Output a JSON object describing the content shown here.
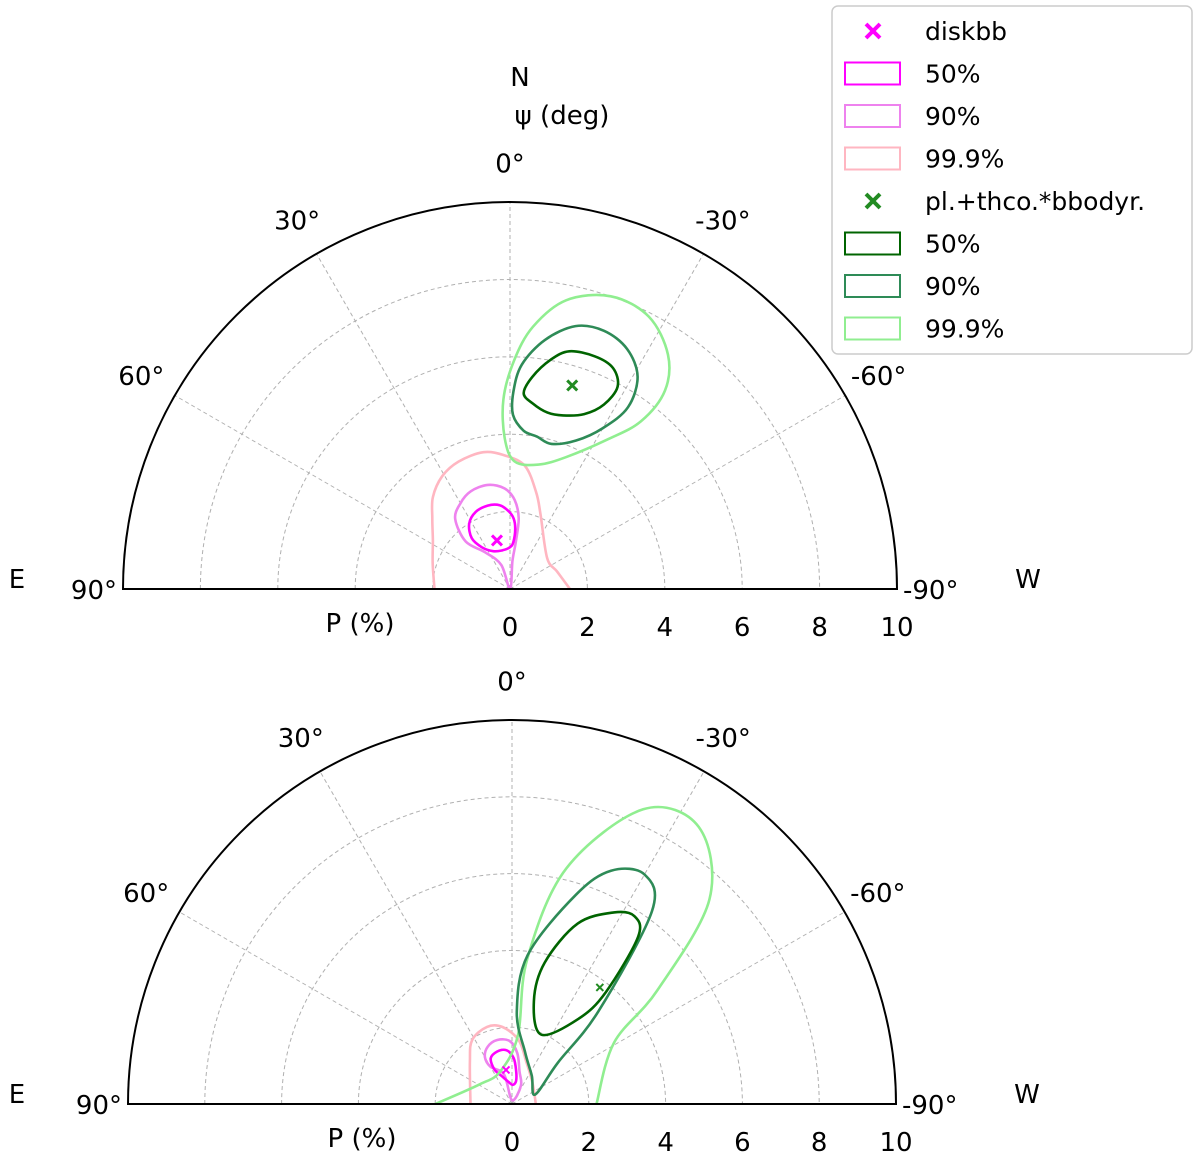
{
  "chart_data": [
    {
      "type": "polar-contour",
      "panel": "top",
      "labels": {
        "north": "N",
        "psi": "ψ (deg)",
        "east": "E",
        "west": "W",
        "p": "P (%)"
      },
      "angle_ticks": [
        "90°",
        "60°",
        "30°",
        "0°",
        "-30°",
        "-60°",
        "-90°"
      ],
      "radial_ticks": [
        "0",
        "2",
        "4",
        "6",
        "8",
        "10"
      ],
      "rlim": [
        0,
        10
      ],
      "thetalim": [
        -90,
        90
      ],
      "series": [
        {
          "name": "diskbb",
          "color": "#ff00ff",
          "best_fit": {
            "P": 1.3,
            "psi": 15
          },
          "contours": [
            {
              "level": "50%",
              "color": "#ff00ff",
              "points": [
                [
                  1.08,
                  0
                ],
                [
                  1.21,
                  -4
                ],
                [
                  1.55,
                  -5
                ],
                [
                  1.82,
                  -3
                ],
                [
                  2.01,
                  1
                ],
                [
                  2.18,
                  7
                ],
                [
                  2.23,
                  15
                ],
                [
                  2.18,
                  24
                ],
                [
                  1.99,
                  32
                ],
                [
                  1.64,
                  37
                ],
                [
                  1.3,
                  34
                ],
                [
                  1.07,
                  24
                ],
                [
                  1.02,
                  11
                ],
                [
                  1.08,
                  0
                ]
              ]
            },
            {
              "level": "90%",
              "color": "#ee82ee",
              "points": [
                [
                  0.0,
                  0
                ],
                [
                  0.72,
                  -5
                ],
                [
                  1.22,
                  -7
                ],
                [
                  1.84,
                  -7
                ],
                [
                  2.3,
                  -3
                ],
                [
                  2.6,
                  3
                ],
                [
                  2.75,
                  12
                ],
                [
                  2.72,
                  22
                ],
                [
                  2.56,
                  30
                ],
                [
                  2.3,
                  38
                ],
                [
                  1.68,
                  43
                ],
                [
                  1.14,
                  34
                ],
                [
                  0.66,
                  20
                ],
                [
                  0.0,
                  0
                ]
              ]
            },
            {
              "level": "99.9%",
              "color": "#ffb6c1",
              "points": [
                [
                  1.55,
                  -90
                ],
                [
                  1.3,
                  -70
                ],
                [
                  1.25,
                  -50
                ],
                [
                  2.1,
                  -22
                ],
                [
                  2.6,
                  -15
                ],
                [
                  3.2,
                  -7
                ],
                [
                  3.45,
                  2
                ],
                [
                  3.6,
                  11
                ],
                [
                  3.55,
                  22
                ],
                [
                  3.4,
                  31
                ],
                [
                  3.1,
                  40
                ],
                [
                  2.7,
                  48
                ],
                [
                  2.35,
                  58
                ],
                [
                  2.1,
                  72
                ],
                [
                  1.95,
                  90
                ]
              ]
            }
          ]
        },
        {
          "name": "pl.+thco.*bbodyr.",
          "color": "#228b22",
          "best_fit": {
            "P": 5.5,
            "psi": -17
          },
          "contours": [
            {
              "level": "50%",
              "color": "#006400",
              "points": [
                [
                  4.83,
                  -7
                ],
                [
                  5.07,
                  -4
                ],
                [
                  5.51,
                  -6
                ],
                [
                  6.01,
                  -10
                ],
                [
                  6.33,
                  -14
                ],
                [
                  6.4,
                  -20
                ],
                [
                  6.3,
                  -25
                ],
                [
                  5.92,
                  -28
                ],
                [
                  5.35,
                  -27
                ],
                [
                  4.91,
                  -23
                ],
                [
                  4.69,
                  -17
                ],
                [
                  4.66,
                  -12
                ],
                [
                  4.83,
                  -7
                ]
              ]
            },
            {
              "level": "90%",
              "color": "#2e8b57",
              "points": [
                [
                  4.1,
                  -5
                ],
                [
                  4.5,
                  -1
                ],
                [
                  5.1,
                  -1
                ],
                [
                  5.8,
                  -3
                ],
                [
                  6.5,
                  -8
                ],
                [
                  7.0,
                  -14
                ],
                [
                  7.1,
                  -20
                ],
                [
                  6.9,
                  -26
                ],
                [
                  6.4,
                  -31
                ],
                [
                  5.6,
                  -33
                ],
                [
                  4.8,
                  -30
                ],
                [
                  4.2,
                  -24
                ],
                [
                  3.9,
                  -16
                ],
                [
                  4.0,
                  -10
                ],
                [
                  4.1,
                  -5
                ]
              ]
            },
            {
              "level": "99.9%",
              "color": "#90ee90",
              "points": [
                [
                  3.3,
                  -2
                ],
                [
                  3.9,
                  2
                ],
                [
                  4.9,
                  2
                ],
                [
                  5.9,
                  -1
                ],
                [
                  6.8,
                  -5
                ],
                [
                  7.6,
                  -11
                ],
                [
                  8.0,
                  -19
                ],
                [
                  7.9,
                  -27
                ],
                [
                  7.3,
                  -34
                ],
                [
                  6.5,
                  -38
                ],
                [
                  5.5,
                  -38
                ],
                [
                  4.6,
                  -33
                ],
                [
                  3.7,
                  -23
                ],
                [
                  3.3,
                  -13
                ],
                [
                  3.3,
                  -2
                ]
              ]
            }
          ]
        }
      ]
    },
    {
      "type": "polar-contour",
      "panel": "bottom",
      "labels": {
        "east": "E",
        "west": "W",
        "p": "P (%)"
      },
      "angle_ticks": [
        "90°",
        "60°",
        "30°",
        "0°",
        "-30°",
        "-60°",
        "-90°"
      ],
      "radial_ticks": [
        "0",
        "2",
        "4",
        "6",
        "8",
        "10"
      ],
      "rlim": [
        0,
        10
      ],
      "thetalim": [
        -90,
        90
      ],
      "series": [
        {
          "name": "diskbb",
          "color": "#ff00ff",
          "best_fit": {
            "P": 0.9,
            "psi": 10
          },
          "contours": [
            {
              "level": "50%",
              "color": "#ff00ff",
              "points": [
                [
                  0.5,
                  -2
                ],
                [
                  0.61,
                  -10
                ],
                [
                  0.88,
                  -7
                ],
                [
                  1.2,
                  -2
                ],
                [
                  1.41,
                  6
                ],
                [
                  1.42,
                  16
                ],
                [
                  1.31,
                  25
                ],
                [
                  1.01,
                  27
                ],
                [
                  0.77,
                  20
                ],
                [
                  0.57,
                  8
                ],
                [
                  0.5,
                  -2
                ]
              ]
            },
            {
              "level": "90%",
              "color": "#ee82ee",
              "points": [
                [
                  0.1,
                  0
                ],
                [
                  0.53,
                  -26
                ],
                [
                  0.87,
                  -13
                ],
                [
                  1.33,
                  -6
                ],
                [
                  1.64,
                  2
                ],
                [
                  1.71,
                  13
                ],
                [
                  1.62,
                  23
                ],
                [
                  1.41,
                  30
                ],
                [
                  1.12,
                  30
                ],
                [
                  0.8,
                  15
                ],
                [
                  0.1,
                  0
                ]
              ]
            },
            {
              "level": "99.9%",
              "color": "#ffb6c1",
              "points": [
                [
                  0.62,
                  -90
                ],
                [
                  0.76,
                  -45
                ],
                [
                  1.15,
                  -19
                ],
                [
                  1.67,
                  -6
                ],
                [
                  2.02,
                  7
                ],
                [
                  2.11,
                  18
                ],
                [
                  1.96,
                  32
                ],
                [
                  1.55,
                  45
                ],
                [
                  1.08,
                  90
                ]
              ]
            }
          ]
        },
        {
          "name": "pl.+thco.*bbodyr.",
          "color": "#228b22",
          "best_fit": {
            "P": 3.8,
            "psi": -37
          },
          "contours": [
            {
              "level": "50%",
              "color": "#006400",
              "points": [
                [
                  1.96,
                  -23
                ],
                [
                  2.82,
                  -38
                ],
                [
                  3.8,
                  -40
                ],
                [
                  5.46,
                  -37
                ],
                [
                  5.84,
                  -33
                ],
                [
                  5.65,
                  -28
                ],
                [
                  5.0,
                  -20
                ],
                [
                  3.78,
                  -13
                ],
                [
                  2.74,
                  -12
                ],
                [
                  1.96,
                  -23
                ]
              ]
            },
            {
              "level": "90%",
              "color": "#2e8b57",
              "points": [
                [
                  0.65,
                  -68
                ],
                [
                  1.6,
                  -48
                ],
                [
                  3.3,
                  -43
                ],
                [
                  6.2,
                  -36
                ],
                [
                  6.9,
                  -30
                ],
                [
                  6.6,
                  -23
                ],
                [
                  5.7,
                  -17
                ],
                [
                  3.9,
                  -6
                ],
                [
                  2.4,
                  -3
                ],
                [
                  1.4,
                  -14
                ],
                [
                  0.9,
                  -35
                ],
                [
                  0.65,
                  -68
                ]
              ]
            },
            {
              "level": "99.9%",
              "color": "#90ee90",
              "points": [
                [
                  2.0,
                  90
                ],
                [
                  1.0,
                  60
                ],
                [
                  0.9,
                  20
                ],
                [
                  1.8,
                  -5
                ],
                [
                  3.8,
                  -6
                ],
                [
                  6.3,
                  -13
                ],
                [
                  8.4,
                  -24
                ],
                [
                  8.7,
                  -34
                ],
                [
                  7.4,
                  -44
                ],
                [
                  4.8,
                  -52
                ],
                [
                  3.1,
                  -59
                ],
                [
                  2.2,
                  -90
                ]
              ]
            }
          ]
        }
      ]
    }
  ],
  "legend": {
    "items": [
      {
        "label": "diskbb",
        "kind": "marker",
        "color": "#ff00ff"
      },
      {
        "label": "50%",
        "kind": "box",
        "color": "#ff00ff"
      },
      {
        "label": "90%",
        "kind": "box",
        "color": "#ee82ee"
      },
      {
        "label": "99.9%",
        "kind": "box",
        "color": "#ffb6c1"
      },
      {
        "label": "pl.+thco.*bbodyr.",
        "kind": "marker",
        "color": "#228b22"
      },
      {
        "label": "50%",
        "kind": "box",
        "color": "#006400"
      },
      {
        "label": "90%",
        "kind": "box",
        "color": "#2e8b57"
      },
      {
        "label": "99.9%",
        "kind": "box",
        "color": "#90ee90"
      }
    ]
  }
}
